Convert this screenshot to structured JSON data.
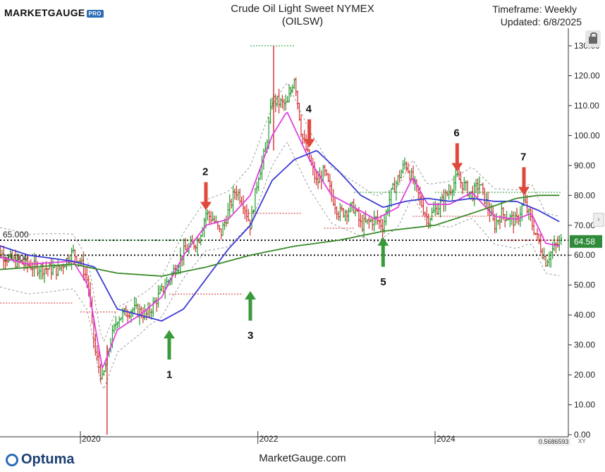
{
  "header": {
    "logo_text": "MARKETGAUGE",
    "logo_badge": "PRO",
    "title": "Crude Oil Light Sweet NYMEX",
    "subtitle": "(OILSW)",
    "timeframe": "Timeframe: Weekly",
    "updated": "Updated: 6/8/2025"
  },
  "footer": {
    "brand": "Optuma",
    "site": "MarketGauge.com",
    "readout": "0.5686593",
    "xy_label": "XY"
  },
  "colors": {
    "up_bar": "#1f9a2a",
    "down_bar": "#d32f2f",
    "ma_fast": "#e040e0",
    "ma_mid": "#3b3bd6",
    "ma_slow": "#3a8a2a",
    "band": "#999999",
    "arrow_down": "#e0483c",
    "arrow_up": "#3a9a3a",
    "price_badge": "#2f8a3a"
  },
  "annotations": {
    "level_65": "65.000",
    "level_60": "60.000",
    "markers": [
      {
        "label": "1",
        "direction": "up",
        "date": "2021-01",
        "price": 35
      },
      {
        "label": "2",
        "direction": "down",
        "date": "2021-06",
        "price": 75
      },
      {
        "label": "3",
        "direction": "up",
        "date": "2021-12",
        "price": 48
      },
      {
        "label": "4",
        "direction": "down",
        "date": "2022-08",
        "price": 96
      },
      {
        "label": "5",
        "direction": "up",
        "date": "2023-06",
        "price": 66
      },
      {
        "label": "6",
        "direction": "down",
        "date": "2024-04",
        "price": 88
      },
      {
        "label": "7",
        "direction": "down",
        "date": "2025-01",
        "price": 80
      }
    ],
    "last_price": "64.58"
  },
  "chart_data": {
    "type": "line",
    "title": "Crude Oil Light Sweet NYMEX",
    "subtitle": "(OILSW)",
    "xlabel": "",
    "ylabel": "",
    "x_ticks": [
      "2020",
      "2022",
      "2024"
    ],
    "y_ticks": [
      "0.00",
      "10.00",
      "20.00",
      "30.00",
      "40.00",
      "50.00",
      "60.00",
      "70.00",
      "80.00",
      "90.00",
      "100.00",
      "110.00",
      "120.00",
      "130.00"
    ],
    "ylim": [
      0,
      132
    ],
    "xlim": [
      "2019-01-01",
      "2025-07-15"
    ],
    "grid": false,
    "horizontal_levels": [
      65,
      60
    ],
    "series": [
      {
        "name": "",
        "kind": "price_weekly_close",
        "x": [
          "2019-01",
          "2019-04",
          "2019-07",
          "2019-10",
          "2019-12",
          "2020-01",
          "2020-02",
          "2020-03",
          "2020-04",
          "2020-05",
          "2020-06",
          "2020-08",
          "2020-10",
          "2020-12",
          "2021-01",
          "2021-03",
          "2021-05",
          "2021-06",
          "2021-07",
          "2021-08",
          "2021-10",
          "2021-11",
          "2021-12",
          "2022-01",
          "2022-02",
          "2022-03",
          "2022-05",
          "2022-06",
          "2022-07",
          "2022-08",
          "2022-09",
          "2022-10",
          "2022-11",
          "2022-12",
          "2023-02",
          "2023-03",
          "2023-05",
          "2023-06",
          "2023-07",
          "2023-09",
          "2023-10",
          "2023-12",
          "2024-02",
          "2024-04",
          "2024-06",
          "2024-07",
          "2024-09",
          "2024-10",
          "2024-12",
          "2025-01",
          "2025-02",
          "2025-04",
          "2025-05",
          "2025-06"
        ],
        "values": [
          62,
          58,
          56,
          55,
          61,
          58,
          51,
          28,
          18,
          30,
          39,
          42,
          40,
          48,
          52,
          61,
          65,
          74,
          72,
          67,
          82,
          78,
          70,
          86,
          95,
          112,
          110,
          120,
          100,
          92,
          84,
          88,
          80,
          74,
          76,
          70,
          72,
          70,
          80,
          91,
          85,
          72,
          78,
          86,
          80,
          84,
          70,
          74,
          71,
          78,
          71,
          58,
          62,
          64.58
        ]
      },
      {
        "name": "",
        "kind": "moving_average_fast",
        "x": [
          "2019-01",
          "2019-06",
          "2019-12",
          "2020-02",
          "2020-04",
          "2020-06",
          "2020-09",
          "2020-12",
          "2021-03",
          "2021-06",
          "2021-09",
          "2021-12",
          "2022-03",
          "2022-05",
          "2022-08",
          "2022-11",
          "2023-02",
          "2023-05",
          "2023-08",
          "2023-10",
          "2023-12",
          "2024-03",
          "2024-06",
          "2024-09",
          "2024-12",
          "2025-02",
          "2025-04",
          "2025-06"
        ],
        "values": [
          60,
          57,
          58,
          50,
          22,
          35,
          40,
          46,
          60,
          70,
          72,
          80,
          100,
          108,
          92,
          80,
          76,
          72,
          76,
          86,
          77,
          77,
          81,
          73,
          72,
          74,
          64,
          63
        ]
      },
      {
        "name": "",
        "kind": "moving_average_mid",
        "x": [
          "2019-01",
          "2019-06",
          "2019-12",
          "2020-03",
          "2020-06",
          "2020-09",
          "2020-12",
          "2021-03",
          "2021-06",
          "2021-09",
          "2021-12",
          "2022-03",
          "2022-06",
          "2022-09",
          "2022-12",
          "2023-03",
          "2023-06",
          "2023-09",
          "2023-12",
          "2024-03",
          "2024-06",
          "2024-09",
          "2024-12",
          "2025-03",
          "2025-06"
        ],
        "values": [
          64,
          60,
          58,
          56,
          42,
          40,
          38,
          42,
          52,
          62,
          70,
          85,
          92,
          95,
          88,
          80,
          76,
          78,
          79,
          78,
          79,
          78,
          78,
          75,
          71
        ]
      },
      {
        "name": "",
        "kind": "moving_average_slow",
        "x": [
          "2019-01",
          "2019-12",
          "2020-06",
          "2020-12",
          "2021-06",
          "2021-12",
          "2022-06",
          "2022-12",
          "2023-06",
          "2024-01",
          "2024-06",
          "2024-12",
          "2025-03",
          "2025-06"
        ],
        "values": [
          55,
          57,
          54,
          53,
          56,
          60,
          63,
          65,
          68,
          70,
          74,
          79,
          80,
          80
        ]
      }
    ]
  }
}
